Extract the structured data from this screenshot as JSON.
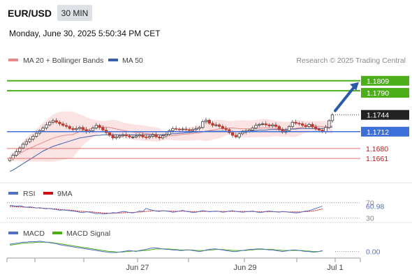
{
  "header": {
    "pair": "EUR/USD",
    "timeframe": "30 MIN",
    "datetime": "Monday, June 30, 2025 5:50:34 PM CET"
  },
  "colors": {
    "bullish": "#3a8a3a",
    "bearish": "#c0392b",
    "ma20": "#e58a8a",
    "ma50": "#3a5fa8",
    "bollinger_fill": "#fbdcdc",
    "resistance": "#4caf1a",
    "support_current": "#3d6fd8",
    "support_red": "#e07070",
    "rsi": "#5470c6",
    "rsi_ma": "#cc1111",
    "macd": "#5470c6",
    "macd_signal": "#4caf1a",
    "arrow": "#2b5aa8"
  },
  "chart_data": [
    {
      "type": "candlestick",
      "legend": [
        {
          "label": "MA 20 + Bollinger Bands",
          "color": "#e58a8a"
        },
        {
          "label": "MA 50",
          "color": "#3a5fa8"
        }
      ],
      "legend_position": "top-left",
      "credit": "Research © 2025 Trading Central",
      "y_range": [
        1.162,
        1.183
      ],
      "x_ticks": [
        "Jun 27",
        "Jun 29",
        "Jul 1"
      ],
      "levels": [
        {
          "value": 1.1809,
          "label": "1.1809",
          "kind": "resistance"
        },
        {
          "value": 1.179,
          "label": "1.1790",
          "kind": "resistance"
        },
        {
          "value": 1.1744,
          "label": "1.1744",
          "kind": "last"
        },
        {
          "value": 1.1712,
          "label": "1.1712",
          "kind": "pivot"
        },
        {
          "value": 1.168,
          "label": "1.1680",
          "kind": "support"
        },
        {
          "value": 1.1661,
          "label": "1.1661",
          "kind": "support"
        }
      ],
      "closes": [
        1.1661,
        1.1667,
        1.1674,
        1.1681,
        1.1688,
        1.1693,
        1.1698,
        1.1703,
        1.1709,
        1.1714,
        1.1719,
        1.1725,
        1.173,
        1.1733,
        1.173,
        1.1727,
        1.1724,
        1.1722,
        1.1718,
        1.1716,
        1.1718,
        1.172,
        1.1716,
        1.1712,
        1.1714,
        1.1719,
        1.1724,
        1.172,
        1.1715,
        1.171,
        1.1705,
        1.17,
        1.1702,
        1.1704,
        1.1706,
        1.1704,
        1.1702,
        1.1702,
        1.1704,
        1.1706,
        1.1702,
        1.1701,
        1.1703,
        1.1706,
        1.1702,
        1.17,
        1.1704,
        1.1707,
        1.1714,
        1.1718,
        1.1717,
        1.1716,
        1.1717,
        1.1716,
        1.1714,
        1.1716,
        1.1718,
        1.172,
        1.1731,
        1.1734,
        1.1728,
        1.1724,
        1.1725,
        1.1722,
        1.1718,
        1.1716,
        1.171,
        1.1705,
        1.1702,
        1.1708,
        1.1711,
        1.1713,
        1.1715,
        1.1719,
        1.1724,
        1.1726,
        1.1727,
        1.1725,
        1.1723,
        1.1725,
        1.1722,
        1.1716,
        1.1711,
        1.1714,
        1.1722,
        1.173,
        1.1728,
        1.1727,
        1.1724,
        1.1722,
        1.1726,
        1.1721,
        1.1717,
        1.1715,
        1.1712,
        1.172,
        1.1733,
        1.1744
      ],
      "ma50": [
        1.1636,
        1.1639,
        1.1643,
        1.1647,
        1.1651,
        1.1655,
        1.1659,
        1.1663,
        1.1667,
        1.1671,
        1.1675,
        1.1678,
        1.1681,
        1.1684,
        1.1686,
        1.1688,
        1.169,
        1.1692,
        1.1694,
        1.1696,
        1.1698,
        1.17,
        1.1701,
        1.1702,
        1.1703,
        1.1704,
        1.1705,
        1.1705,
        1.1706,
        1.1706,
        1.1706,
        1.1706,
        1.1706,
        1.1706,
        1.1706,
        1.1706,
        1.1706,
        1.1706,
        1.1706,
        1.1706,
        1.1706,
        1.1706,
        1.1706,
        1.1706,
        1.1706,
        1.1706,
        1.1706,
        1.1707,
        1.1707,
        1.1708,
        1.1708,
        1.1709,
        1.1709,
        1.171,
        1.171,
        1.1711,
        1.1711,
        1.1712,
        1.1712,
        1.1713,
        1.1713,
        1.1713,
        1.1713,
        1.1713,
        1.1713,
        1.1713,
        1.1712,
        1.1712,
        1.1712,
        1.1712,
        1.1713,
        1.1713,
        1.1713,
        1.1714,
        1.1714,
        1.1715,
        1.1715,
        1.1715,
        1.1716,
        1.1716,
        1.1716,
        1.1716,
        1.1716,
        1.1716,
        1.1717,
        1.1717,
        1.1717,
        1.1718,
        1.1718,
        1.1718,
        1.1718,
        1.1718,
        1.1718,
        1.1718,
        1.1718,
        1.1719,
        1.172,
        1.1721
      ]
    },
    {
      "type": "line",
      "legend": [
        {
          "label": "RSI",
          "color": "#5470c6"
        },
        {
          "label": "9MA",
          "color": "#cc1111"
        }
      ],
      "y_range": [
        25,
        75
      ],
      "y_ticks": [
        {
          "value": 70,
          "label": "70"
        },
        {
          "value": 30,
          "label": "30"
        }
      ],
      "last_value": 60.98,
      "last_label": "60.98",
      "rsi": [
        63,
        62,
        61,
        62,
        60,
        58,
        59,
        58,
        56,
        57,
        55,
        54,
        55,
        53,
        52,
        50,
        51,
        50,
        49,
        48,
        47,
        45,
        44,
        46,
        45,
        43,
        41,
        42,
        40,
        41,
        42,
        44,
        43,
        45,
        47,
        46,
        44,
        43,
        45,
        48,
        47,
        55,
        52,
        50,
        48,
        47,
        49,
        48,
        47,
        45,
        46,
        48,
        50,
        47,
        46,
        44,
        45,
        47,
        49,
        48,
        46,
        47,
        48,
        47,
        45,
        46,
        48,
        49,
        47,
        46,
        45,
        46,
        47,
        48,
        46,
        44,
        45,
        47,
        48,
        47,
        46,
        45,
        47,
        46,
        45,
        44,
        43,
        44,
        46,
        48,
        49,
        52,
        55,
        58,
        60.98
      ],
      "rsi_ma": [
        60,
        60,
        59.5,
        59,
        58.5,
        58,
        57.5,
        57,
        56.5,
        56,
        55.5,
        55,
        54.5,
        54,
        53.5,
        52.5,
        51.5,
        51,
        50.5,
        49.5,
        48.5,
        47.5,
        47,
        46.5,
        46,
        45.5,
        44.5,
        44,
        43,
        42.5,
        42,
        42,
        42.5,
        43,
        43.5,
        44,
        44.5,
        44.5,
        45,
        45.5,
        46,
        47,
        48,
        48.5,
        48.5,
        48.5,
        48.5,
        48.5,
        48,
        47.5,
        47.5,
        47.5,
        47.5,
        47.5,
        47,
        46.5,
        46.5,
        46.5,
        47,
        47,
        47,
        47,
        47,
        47,
        47,
        47,
        47,
        47,
        47,
        47,
        47,
        47,
        46.5,
        46.5,
        46.5,
        46,
        46,
        46,
        46,
        46,
        46,
        46,
        46,
        46,
        45.5,
        45.5,
        45.5,
        45.5,
        46,
        46.5,
        47,
        48,
        49.5,
        51.5,
        53.5
      ]
    },
    {
      "type": "line",
      "legend": [
        {
          "label": "MACD",
          "color": "#5470c6"
        },
        {
          "label": "MACD Signal",
          "color": "#4caf1a"
        }
      ],
      "y_range": [
        -0.001,
        0.0025
      ],
      "zero_label": "0.00",
      "macd": [
        0.0014,
        0.0015,
        0.0016,
        0.0017,
        0.0018,
        0.0018,
        0.0019,
        0.0019,
        0.0019,
        0.002,
        0.0019,
        0.0018,
        0.0017,
        0.0016,
        0.0015,
        0.0013,
        0.0012,
        0.0011,
        0.001,
        0.0009,
        0.0008,
        0.0007,
        0.0006,
        0.0005,
        0.0004,
        0.0003,
        0.0002,
        0.0001,
        0.0,
        -0.0001,
        -0.0002,
        -0.0002,
        -0.0002,
        -0.0001,
        0.0,
        0.0001,
        0.0002,
        0.0001,
        0.0,
        0.0002,
        0.0003,
        0.0004,
        0.0006,
        0.0007,
        0.0007,
        0.0006,
        0.0005,
        0.0004,
        0.0004,
        0.0003,
        0.0003,
        0.0002,
        0.0002,
        0.0003,
        0.0003,
        0.0002,
        0.0001,
        0.0,
        0.0001,
        0.0003,
        0.0004,
        0.0005,
        0.0005,
        0.0004,
        0.0003,
        0.0002,
        0.0001,
        0.0,
        0.0,
        0.0001,
        0.0002,
        0.0003,
        0.0004,
        0.0004,
        0.0005,
        0.0005,
        0.0005,
        0.0004,
        0.0003,
        0.0003,
        0.0002,
        0.0001,
        0.0,
        0.0001,
        0.0002,
        0.0003,
        0.0003,
        0.0002,
        0.0001,
        0.0,
        0.0,
        -0.0001,
        -0.0001,
        0.0,
        0.0002
      ],
      "signal": [
        0.0012,
        0.0013,
        0.0014,
        0.0015,
        0.0016,
        0.0016,
        0.0017,
        0.0017,
        0.0018,
        0.0018,
        0.0018,
        0.0018,
        0.0018,
        0.0017,
        0.0016,
        0.0015,
        0.0014,
        0.0013,
        0.0012,
        0.0011,
        0.001,
        0.0009,
        0.0008,
        0.0007,
        0.0006,
        0.0005,
        0.0004,
        0.0003,
        0.0002,
        0.0001,
        0.0,
        0.0,
        -0.0001,
        -0.0001,
        -0.0001,
        0.0,
        0.0,
        0.0001,
        0.0001,
        0.0001,
        0.0002,
        0.0002,
        0.0003,
        0.0004,
        0.0005,
        0.0005,
        0.0005,
        0.0005,
        0.0005,
        0.0004,
        0.0004,
        0.0003,
        0.0003,
        0.0003,
        0.0003,
        0.0003,
        0.0002,
        0.0002,
        0.0002,
        0.0002,
        0.0003,
        0.0003,
        0.0004,
        0.0004,
        0.0004,
        0.0003,
        0.0003,
        0.0002,
        0.0002,
        0.0002,
        0.0002,
        0.0002,
        0.0003,
        0.0003,
        0.0004,
        0.0004,
        0.0004,
        0.0004,
        0.0004,
        0.0004,
        0.0003,
        0.0003,
        0.0002,
        0.0002,
        0.0002,
        0.0002,
        0.0002,
        0.0002,
        0.0002,
        0.0001,
        0.0001,
        0.0,
        0.0,
        0.0,
        0.0001
      ]
    }
  ]
}
